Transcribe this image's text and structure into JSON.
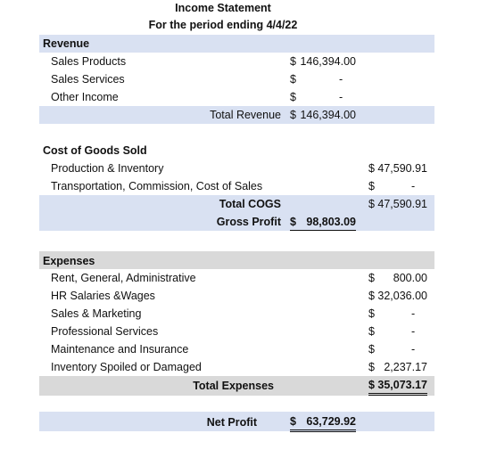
{
  "title": "Income Statement",
  "subtitle": "For the period ending 4/4/22",
  "revenue": {
    "header": "Revenue",
    "items": [
      {
        "label": "Sales Products",
        "symbol": "$",
        "amount": "146,394.00"
      },
      {
        "label": "Sales Services",
        "symbol": "$",
        "amount": "-"
      },
      {
        "label": "Other Income",
        "symbol": "$",
        "amount": "-"
      }
    ],
    "total_label": "Total Revenue",
    "total_symbol": "$",
    "total_amount": "146,394.00"
  },
  "cogs": {
    "header": "Cost of Goods Sold",
    "items": [
      {
        "label": "Production & Inventory",
        "symbol": "$",
        "amount": "47,590.91"
      },
      {
        "label": "Transportation, Commission, Cost of Sales",
        "symbol": "$",
        "amount": "-"
      }
    ],
    "total_label": "Total COGS",
    "total_symbol": "$",
    "total_amount": "47,590.91",
    "gross_label": "Gross Profit",
    "gross_symbol": "$",
    "gross_amount": "98,803.09"
  },
  "expenses": {
    "header": "Expenses",
    "items": [
      {
        "label": "Rent, General, Administrative",
        "symbol": "$",
        "amount": "800.00"
      },
      {
        "label": "HR Salaries &Wages",
        "symbol": "$",
        "amount": "32,036.00"
      },
      {
        "label": "Sales & Marketing",
        "symbol": "$",
        "amount": "-"
      },
      {
        "label": "Professional Services",
        "symbol": "$",
        "amount": "-"
      },
      {
        "label": "Maintenance and Insurance",
        "symbol": "$",
        "amount": "-"
      },
      {
        "label": "Inventory Spoiled or Damaged",
        "symbol": "$",
        "amount": "2,237.17"
      }
    ],
    "total_label": "Total Expenses",
    "total_symbol": "$",
    "total_amount": "35,073.17"
  },
  "net": {
    "label": "Net Profit",
    "symbol": "$",
    "amount": "63,729.92"
  },
  "colors": {
    "band_blue": "#d9e1f2",
    "band_gray": "#d9d9d9",
    "text": "#111111"
  }
}
